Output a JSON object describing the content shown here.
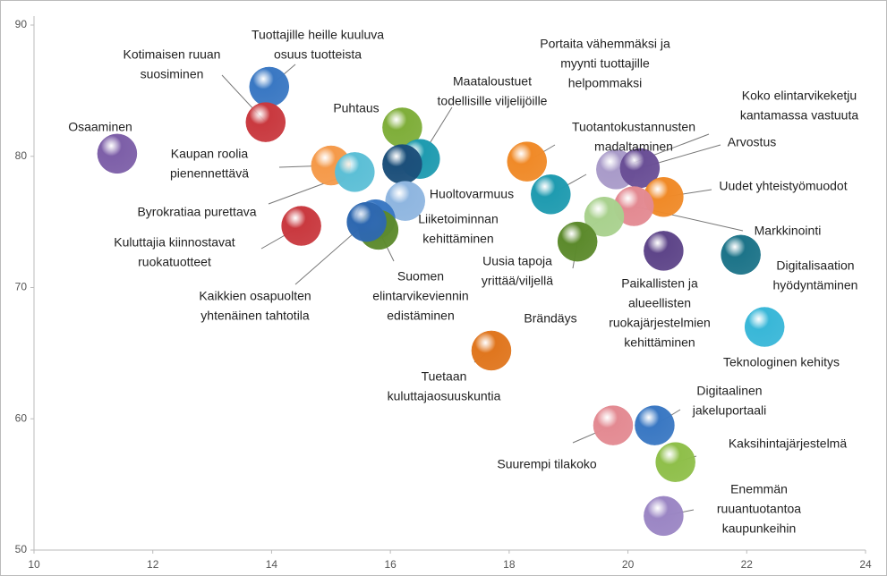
{
  "chart_data": {
    "type": "scatter",
    "xlim": [
      10,
      24
    ],
    "ylim": [
      50,
      90
    ],
    "xticks": [
      10,
      12,
      14,
      16,
      18,
      20,
      22,
      24
    ],
    "yticks": [
      50,
      60,
      70,
      80,
      90
    ],
    "points": [
      {
        "label": [
          "Osaaminen"
        ],
        "x": 11.4,
        "y": 80.2,
        "color": "#7d5fa8"
      },
      {
        "label": [
          "Tuottajille heille kuuluva",
          "osuus tuotteista"
        ],
        "x": 13.96,
        "y": 85.3,
        "color": "#3a78c3"
      },
      {
        "label": [
          "Kotimaisen ruuan",
          "suosiminen"
        ],
        "x": 13.9,
        "y": 82.6,
        "color": "#c9393f"
      },
      {
        "label": [
          "Puhtaus"
        ],
        "x": 16.2,
        "y": 82.2,
        "color": "#7fae3a"
      },
      {
        "label": [
          "Maataloustuet",
          "todellisille viljelijöille"
        ],
        "x": 16.5,
        "y": 79.8,
        "color": "#1f9bb0"
      },
      {
        "label": [
          "Kaupan roolia",
          "pienennettävä"
        ],
        "x": 15.0,
        "y": 79.3,
        "color": "#f59a4a"
      },
      {
        "label": [
          "Byrokratiaa purettava"
        ],
        "x": 15.4,
        "y": 78.8,
        "color": "#5cbfd6"
      },
      {
        "label": null,
        "x": 16.2,
        "y": 79.4,
        "color": "#1c4f7a"
      },
      {
        "label": [
          "Huoltovarmuus"
        ],
        "x": 16.25,
        "y": 76.6,
        "color": "#8fb6e0"
      },
      {
        "label": [
          "Liiketoiminnan",
          "kehittäminen"
        ],
        "x": 15.75,
        "y": 75.2,
        "color": "#3a78c3"
      },
      {
        "label": [
          "Suomen",
          "elintarvikeviennin",
          "edistäminen"
        ],
        "x": 15.8,
        "y": 74.4,
        "color": "#5c8a2c"
      },
      {
        "label": [
          "Kuluttajia kiinnostavat",
          "ruokatuotteet"
        ],
        "x": 14.5,
        "y": 74.7,
        "color": "#c9393f"
      },
      {
        "label": [
          "Kaikkien osapuolten",
          "yhtenäinen tahtotila"
        ],
        "x": 15.6,
        "y": 75.0,
        "color": "#2e68b0"
      },
      {
        "label": [
          "Portaita vähemmäksi ja",
          "myynti tuottajille",
          "helpommaksi"
        ],
        "x": 18.3,
        "y": 79.6,
        "color": "#f08a28"
      },
      {
        "label": [
          "Tuotantokustannusten",
          "madaltaminen"
        ],
        "x": 18.7,
        "y": 77.1,
        "color": "#1f9bb0"
      },
      {
        "label": [
          "Koko elintarvikeketju",
          "kantamassa vastuuta"
        ],
        "x": 19.8,
        "y": 79.0,
        "color": "#a99bc9"
      },
      {
        "label": [
          "Arvostus"
        ],
        "x": 20.2,
        "y": 79.1,
        "color": "#6a4f96"
      },
      {
        "label": [
          "Uudet yhteistyömuodot"
        ],
        "x": 20.6,
        "y": 76.9,
        "color": "#f08a28"
      },
      {
        "label": [
          "Markkinointi"
        ],
        "x": 20.1,
        "y": 76.2,
        "color": "#e38a92"
      },
      {
        "label": [
          "Uusia tapoja",
          "yrittää/viljellä"
        ],
        "x": 19.6,
        "y": 75.4,
        "color": "#a9d18e"
      },
      {
        "label": [
          "Brändäys"
        ],
        "x": 19.15,
        "y": 73.5,
        "color": "#5c8a2c"
      },
      {
        "label": [
          "Paikallisten ja",
          "alueellisten",
          "ruokajärjestelmien",
          "kehittäminen"
        ],
        "x": 20.6,
        "y": 72.8,
        "color": "#5e4589"
      },
      {
        "label": [
          "Digitalisaation",
          "hyödyntäminen"
        ],
        "x": 21.9,
        "y": 72.5,
        "color": "#1d7489"
      },
      {
        "label": [
          "Teknologinen kehitys"
        ],
        "x": 22.3,
        "y": 67.0,
        "color": "#39b7d8"
      },
      {
        "label": [
          "Tuetaan",
          "kuluttajaosuuskuntia"
        ],
        "x": 17.7,
        "y": 65.2,
        "color": "#e0761e"
      },
      {
        "label": [
          "Digitaalinen",
          "jakeluportaali"
        ],
        "x": 20.45,
        "y": 59.5,
        "color": "#3a78c3"
      },
      {
        "label": [
          "Suurempi tilakoko"
        ],
        "x": 19.75,
        "y": 59.5,
        "color": "#e38a92"
      },
      {
        "label": [
          "Kaksihintajärjestelmä"
        ],
        "x": 20.8,
        "y": 56.7,
        "color": "#8fbf4a"
      },
      {
        "label": [
          "Enemmän",
          "ruuantuotantoa",
          "kaupunkeihin"
        ],
        "x": 20.6,
        "y": 52.6,
        "color": "#9b86c4"
      }
    ]
  }
}
